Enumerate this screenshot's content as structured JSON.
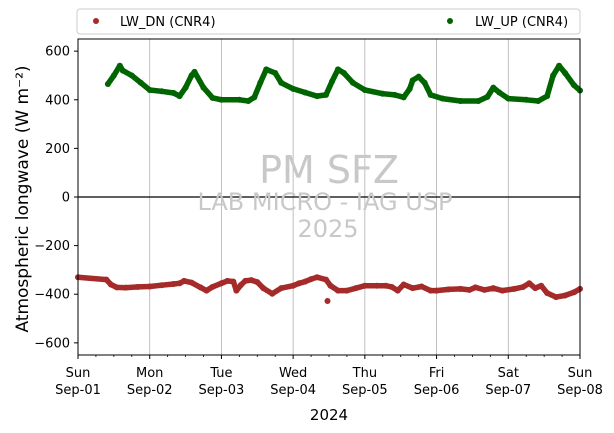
{
  "chart_data": {
    "type": "scatter",
    "title": "",
    "xlabel": "2024",
    "ylabel": "Atmospheric longwave (W m⁻²)",
    "ylim": [
      -650,
      650
    ],
    "yticks": [
      -600,
      -400,
      -200,
      0,
      200,
      400,
      600
    ],
    "xlim": [
      "2024-09-01",
      "2024-09-08"
    ],
    "x_ticks": [
      {
        "x": "2024-09-01",
        "day": "Sun",
        "date": "Sep-01"
      },
      {
        "x": "2024-09-02",
        "day": "Mon",
        "date": "Sep-02"
      },
      {
        "x": "2024-09-03",
        "day": "Tue",
        "date": "Sep-03"
      },
      {
        "x": "2024-09-04",
        "day": "Wed",
        "date": "Sep-04"
      },
      {
        "x": "2024-09-05",
        "day": "Thu",
        "date": "Sep-05"
      },
      {
        "x": "2024-09-06",
        "day": "Fri",
        "date": "Sep-06"
      },
      {
        "x": "2024-09-07",
        "day": "Sat",
        "date": "Sep-07"
      },
      {
        "x": "2024-09-08",
        "day": "Sun",
        "date": "Sep-08"
      }
    ],
    "grid": "vertical",
    "zero_line": true,
    "legend": "top, outside, two columns",
    "watermark": [
      "PM SFZ",
      "LAB MICRO - IAG USP",
      "2025"
    ],
    "series": [
      {
        "name": "LW_DN (CNR4)",
        "color": "#a52a2a",
        "points": [
          [
            "2024-09-01 00:00",
            -330
          ],
          [
            "2024-09-01 09:30",
            -340
          ],
          [
            "2024-09-01 11:00",
            -360
          ],
          [
            "2024-09-01 13:00",
            -372
          ],
          [
            "2024-09-01 16:00",
            -373
          ],
          [
            "2024-09-01 20:00",
            -370
          ],
          [
            "2024-09-02 00:00",
            -368
          ],
          [
            "2024-09-02 04:00",
            -363
          ],
          [
            "2024-09-02 08:00",
            -358
          ],
          [
            "2024-09-02 10:00",
            -355
          ],
          [
            "2024-09-02 11:30",
            -345
          ],
          [
            "2024-09-02 14:00",
            -352
          ],
          [
            "2024-09-02 17:00",
            -372
          ],
          [
            "2024-09-02 19:00",
            -385
          ],
          [
            "2024-09-02 21:00",
            -370
          ],
          [
            "2024-09-03 00:00",
            -355
          ],
          [
            "2024-09-03 02:00",
            -345
          ],
          [
            "2024-09-03 04:00",
            -348
          ],
          [
            "2024-09-03 05:00",
            -385
          ],
          [
            "2024-09-03 06:30",
            -362
          ],
          [
            "2024-09-03 08:00",
            -345
          ],
          [
            "2024-09-03 10:00",
            -342
          ],
          [
            "2024-09-03 12:00",
            -350
          ],
          [
            "2024-09-03 14:00",
            -375
          ],
          [
            "2024-09-03 17:00",
            -398
          ],
          [
            "2024-09-03 20:00",
            -375
          ],
          [
            "2024-09-04 00:00",
            -365
          ],
          [
            "2024-09-04 02:00",
            -355
          ],
          [
            "2024-09-04 04:00",
            -348
          ],
          [
            "2024-09-04 06:00",
            -338
          ],
          [
            "2024-09-04 08:00",
            -330
          ],
          [
            "2024-09-04 11:00",
            -340
          ],
          [
            "2024-09-04 12:30",
            -365
          ],
          [
            "2024-09-04 15:00",
            -385
          ],
          [
            "2024-09-04 18:00",
            -385
          ],
          [
            "2024-09-04 21:00",
            -375
          ],
          [
            "2024-09-05 00:00",
            -365
          ],
          [
            "2024-09-05 04:00",
            -365
          ],
          [
            "2024-09-05 07:00",
            -365
          ],
          [
            "2024-09-05 09:00",
            -370
          ],
          [
            "2024-09-05 11:00",
            -385
          ],
          [
            "2024-09-05 13:00",
            -360
          ],
          [
            "2024-09-05 16:00",
            -375
          ],
          [
            "2024-09-05 19:00",
            -368
          ],
          [
            "2024-09-05 22:00",
            -385
          ],
          [
            "2024-09-06 00:00",
            -385
          ],
          [
            "2024-09-06 04:00",
            -380
          ],
          [
            "2024-09-06 08:00",
            -378
          ],
          [
            "2024-09-06 11:00",
            -382
          ],
          [
            "2024-09-06 13:00",
            -372
          ],
          [
            "2024-09-06 16:00",
            -382
          ],
          [
            "2024-09-06 19:00",
            -375
          ],
          [
            "2024-09-06 22:00",
            -385
          ],
          [
            "2024-09-07 02:00",
            -378
          ],
          [
            "2024-09-07 05:00",
            -370
          ],
          [
            "2024-09-07 07:00",
            -355
          ],
          [
            "2024-09-07 09:00",
            -375
          ],
          [
            "2024-09-07 11:00",
            -365
          ],
          [
            "2024-09-07 13:00",
            -395
          ],
          [
            "2024-09-07 16:00",
            -412
          ],
          [
            "2024-09-07 19:00",
            -405
          ],
          [
            "2024-09-07 22:00",
            -392
          ],
          [
            "2024-09-08 00:00",
            -378
          ]
        ],
        "outliers": [
          [
            "2024-09-04 11:30",
            -428
          ]
        ]
      },
      {
        "name": "LW_UP (CNR4)",
        "color": "#006400",
        "points": [
          [
            "2024-09-01 10:00",
            465
          ],
          [
            "2024-09-01 12:00",
            500
          ],
          [
            "2024-09-01 14:00",
            540
          ],
          [
            "2024-09-01 15:00",
            520
          ],
          [
            "2024-09-01 18:00",
            500
          ],
          [
            "2024-09-01 21:00",
            470
          ],
          [
            "2024-09-02 00:00",
            440
          ],
          [
            "2024-09-02 04:00",
            435
          ],
          [
            "2024-09-02 08:00",
            428
          ],
          [
            "2024-09-02 10:00",
            415
          ],
          [
            "2024-09-02 12:00",
            450
          ],
          [
            "2024-09-02 14:00",
            500
          ],
          [
            "2024-09-02 15:00",
            515
          ],
          [
            "2024-09-02 18:00",
            450
          ],
          [
            "2024-09-02 21:00",
            408
          ],
          [
            "2024-09-03 00:00",
            400
          ],
          [
            "2024-09-03 06:00",
            400
          ],
          [
            "2024-09-03 09:00",
            395
          ],
          [
            "2024-09-03 11:00",
            410
          ],
          [
            "2024-09-03 13:00",
            470
          ],
          [
            "2024-09-03 15:00",
            525
          ],
          [
            "2024-09-03 18:00",
            510
          ],
          [
            "2024-09-03 20:00",
            470
          ],
          [
            "2024-09-04 00:00",
            445
          ],
          [
            "2024-09-04 04:00",
            430
          ],
          [
            "2024-09-04 08:00",
            415
          ],
          [
            "2024-09-04 11:00",
            420
          ],
          [
            "2024-09-04 13:00",
            475
          ],
          [
            "2024-09-04 15:00",
            525
          ],
          [
            "2024-09-04 17:00",
            510
          ],
          [
            "2024-09-04 20:00",
            470
          ],
          [
            "2024-09-05 00:00",
            440
          ],
          [
            "2024-09-05 06:00",
            425
          ],
          [
            "2024-09-05 10:00",
            420
          ],
          [
            "2024-09-05 13:00",
            410
          ],
          [
            "2024-09-05 15:00",
            445
          ],
          [
            "2024-09-05 16:00",
            480
          ],
          [
            "2024-09-05 18:00",
            495
          ],
          [
            "2024-09-05 20:00",
            470
          ],
          [
            "2024-09-05 22:00",
            420
          ],
          [
            "2024-09-06 02:00",
            405
          ],
          [
            "2024-09-06 08:00",
            395
          ],
          [
            "2024-09-06 14:00",
            395
          ],
          [
            "2024-09-06 17:00",
            412
          ],
          [
            "2024-09-06 19:00",
            450
          ],
          [
            "2024-09-06 21:00",
            430
          ],
          [
            "2024-09-07 00:00",
            405
          ],
          [
            "2024-09-07 06:00",
            400
          ],
          [
            "2024-09-07 10:00",
            395
          ],
          [
            "2024-09-07 13:00",
            415
          ],
          [
            "2024-09-07 15:00",
            500
          ],
          [
            "2024-09-07 17:00",
            540
          ],
          [
            "2024-09-07 19:00",
            510
          ],
          [
            "2024-09-07 22:00",
            460
          ],
          [
            "2024-09-08 00:00",
            438
          ]
        ]
      }
    ]
  }
}
